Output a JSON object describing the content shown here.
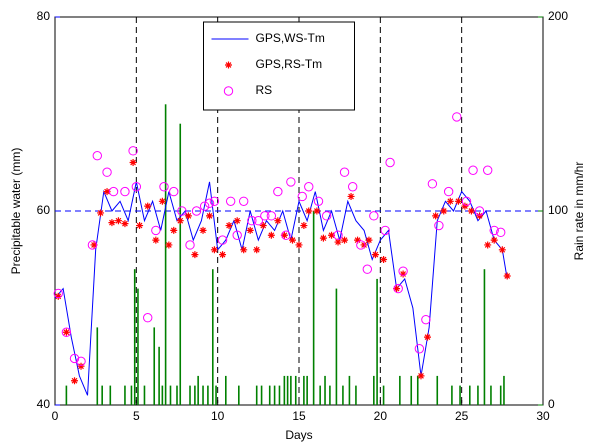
{
  "chart_data": {
    "type": "line",
    "xlabel": "Days",
    "ylabel": "Precipitable water (mm)",
    "y2label": "Rain rate in mm/hr",
    "ylabel_color": "#0000ff",
    "y2label_color": "#008000",
    "xlim": [
      0,
      30
    ],
    "xticks": [
      0,
      5,
      10,
      15,
      20,
      25,
      30
    ],
    "ylim": [
      40,
      80
    ],
    "yticks": [
      40,
      60,
      80
    ],
    "y2lim": [
      0,
      200
    ],
    "y2ticks": [
      0,
      100,
      200
    ],
    "grid": true,
    "grid_style": "dashed",
    "legend": "upper center",
    "series": [
      {
        "name": "GPS,WS-Tm",
        "type": "line",
        "color": "#0000ff",
        "x": [
          0,
          0.5,
          1,
          1.5,
          2,
          2.5,
          3,
          3.5,
          4,
          4.5,
          5,
          5.5,
          6,
          6.5,
          7,
          7.5,
          8,
          8.5,
          9,
          9.5,
          10,
          10.5,
          11,
          11.5,
          12,
          12.5,
          13,
          13.5,
          14,
          14.5,
          15,
          15.5,
          16,
          16.5,
          17,
          17.5,
          18,
          18.5,
          19,
          19.5,
          20,
          20.5,
          21,
          21.5,
          22,
          22.5,
          23,
          23.5,
          24,
          24.5,
          25,
          25.5,
          26,
          26.5,
          27,
          27.5,
          27.8
        ],
        "values": [
          51,
          52,
          47,
          43,
          41,
          56,
          62,
          60,
          61,
          59,
          63,
          59,
          61,
          58,
          62,
          59,
          60,
          57,
          59,
          63,
          56,
          57,
          59,
          56,
          60,
          57,
          59,
          58,
          60,
          57,
          61,
          59,
          62,
          58,
          60,
          57,
          61,
          59,
          58,
          55,
          57,
          58,
          52,
          53,
          50,
          43,
          48,
          59,
          61,
          60,
          62,
          61,
          59,
          60,
          57,
          56,
          53
        ]
      },
      {
        "name": "GPS,RS-Tm",
        "type": "scatter",
        "marker": "star",
        "color": "#ff0000",
        "x": [
          0.2,
          0.7,
          1.2,
          1.6,
          2.4,
          2.8,
          3.2,
          3.5,
          3.9,
          4.3,
          4.8,
          5.2,
          5.7,
          6.2,
          6.6,
          7,
          7.3,
          7.7,
          8.2,
          8.6,
          9.1,
          9.5,
          9.8,
          10.3,
          10.7,
          11.2,
          11.6,
          12,
          12.4,
          12.8,
          13.3,
          13.7,
          14.1,
          14.6,
          15,
          15.3,
          15.6,
          16.1,
          16.5,
          17,
          17.4,
          17.8,
          18.2,
          18.6,
          19,
          19.3,
          19.7,
          20.2,
          21,
          21.4,
          22.5,
          22.9,
          23.4,
          23.9,
          24.3,
          24.8,
          25.2,
          25.6,
          26.1,
          26.6,
          27,
          27.5,
          27.8
        ],
        "values": [
          51.2,
          47.5,
          42.5,
          44,
          56.5,
          59.8,
          62,
          58.8,
          59,
          58.7,
          65,
          58.5,
          60.5,
          57,
          61,
          56.5,
          58,
          59,
          59.5,
          55.5,
          58,
          59.5,
          56,
          55.5,
          58.5,
          59,
          56,
          58,
          56,
          58.5,
          57.5,
          59,
          57.5,
          57,
          56.5,
          58.5,
          60,
          60,
          57.2,
          57.5,
          56.8,
          57,
          61.5,
          57,
          56.5,
          57,
          55.5,
          55,
          52,
          53.5,
          43,
          47,
          59.5,
          60,
          61,
          61,
          60.5,
          60,
          59.5,
          56.5,
          57,
          56,
          53.3
        ]
      },
      {
        "name": "RS",
        "type": "scatter",
        "marker": "circle",
        "color": "#ff00ff",
        "x": [
          0.2,
          0.7,
          1.2,
          1.6,
          2.3,
          2.6,
          3.2,
          3.6,
          4.3,
          4.8,
          5,
          5.7,
          6.2,
          6.7,
          7.3,
          7.8,
          8.3,
          8.7,
          9.2,
          9.5,
          9.8,
          10.3,
          10.8,
          11.2,
          11.6,
          12.1,
          12.5,
          12.9,
          13.3,
          13.7,
          14.2,
          14.5,
          15.2,
          15.6,
          16.2,
          16.7,
          17.4,
          17.8,
          18.3,
          18.8,
          19.2,
          19.6,
          20.3,
          20.6,
          21.1,
          21.4,
          22.4,
          22.8,
          23.2,
          23.6,
          24.2,
          24.7,
          25.3,
          25.7,
          26.1,
          26.6,
          27,
          27.4
        ],
        "values": [
          51.5,
          47.5,
          44.8,
          44.5,
          56.5,
          65.7,
          64,
          62,
          62,
          66.2,
          62.5,
          49,
          58,
          62.5,
          62,
          60,
          56.5,
          60,
          60.5,
          60.8,
          61,
          57,
          61,
          57.5,
          61,
          59,
          59,
          59.5,
          59.5,
          62,
          57.5,
          63,
          61.5,
          62.5,
          61,
          59.5,
          57.5,
          64,
          62.5,
          56.5,
          54,
          59.5,
          58,
          65,
          52,
          53.8,
          45.8,
          48.8,
          62.8,
          58.5,
          62,
          69.7,
          61,
          64.2,
          60,
          64.2,
          58,
          57.8
        ]
      },
      {
        "type": "bar",
        "axis": "y2",
        "color": "#008000",
        "x": [
          0.7,
          2.6,
          2.9,
          3.4,
          4.3,
          4.7,
          4.9,
          5.1,
          5.5,
          6.1,
          6.4,
          6.6,
          6.8,
          7.1,
          7.5,
          7.7,
          8.3,
          8.6,
          8.8,
          9.1,
          9.4,
          9.7,
          9.9,
          10.5,
          11.3,
          12.4,
          12.7,
          13.2,
          13.5,
          13.8,
          14.1,
          14.3,
          14.5,
          14.8,
          15.3,
          15.5,
          15.9,
          16.3,
          16.6,
          16.9,
          17.3,
          17.7,
          18.1,
          18.5,
          19.6,
          19.8,
          20.2,
          21.2,
          21.9,
          22.3,
          23.5,
          24.4,
          24.9,
          25.5,
          26,
          26.4,
          26.8,
          27.4,
          27.6
        ],
        "values": [
          10,
          40,
          10,
          10,
          10,
          10,
          70,
          60,
          10,
          40,
          30,
          10,
          155,
          10,
          10,
          145,
          10,
          10,
          15,
          10,
          10,
          70,
          10,
          15,
          10,
          10,
          10,
          10,
          10,
          10,
          15,
          15,
          15,
          15,
          15,
          15,
          100,
          10,
          15,
          10,
          60,
          10,
          15,
          10,
          15,
          65,
          10,
          15,
          15,
          15,
          15,
          10,
          10,
          10,
          10,
          70,
          10,
          10,
          15
        ]
      }
    ]
  }
}
